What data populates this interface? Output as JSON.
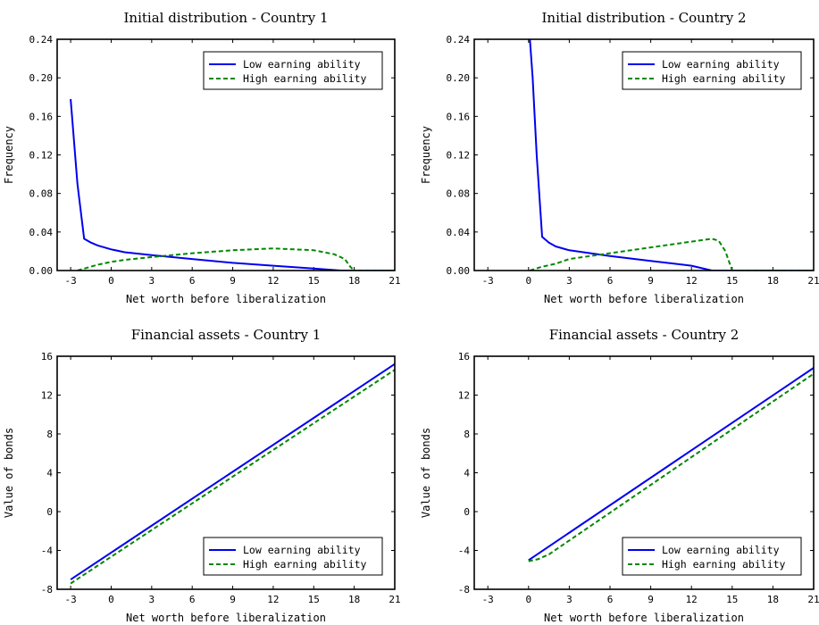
{
  "chart_data": [
    {
      "type": "line",
      "title": "Initial distribution - Country 1",
      "xlabel": "Net worth before liberalization",
      "ylabel": "Frequency",
      "xlim": [
        -4,
        21
      ],
      "ylim": [
        0,
        0.24
      ],
      "xticks": [
        "-3",
        "0",
        "3",
        "6",
        "9",
        "12",
        "15",
        "18",
        "21"
      ],
      "yticks": [
        "0.00",
        "0.04",
        "0.08",
        "0.12",
        "0.16",
        "0.20",
        "0.24"
      ],
      "legend": "top-right",
      "series": [
        {
          "name": "Low earning ability",
          "color": "#0000ee",
          "style": "solid",
          "x": [
            -3,
            -2.5,
            -2,
            -1.5,
            -1,
            0,
            1,
            3,
            6,
            9,
            12,
            15,
            17,
            21
          ],
          "y": [
            0.178,
            0.09,
            0.033,
            0.029,
            0.026,
            0.022,
            0.019,
            0.016,
            0.012,
            0.008,
            0.005,
            0.002,
            0.0,
            0.0
          ]
        },
        {
          "name": "High earning ability",
          "color": "#008800",
          "style": "dashed",
          "x": [
            -2.5,
            -1,
            0,
            1,
            3,
            6,
            9,
            12,
            15,
            16.5,
            17.3,
            17.7,
            18,
            21
          ],
          "y": [
            0.0,
            0.006,
            0.009,
            0.011,
            0.014,
            0.018,
            0.021,
            0.023,
            0.021,
            0.017,
            0.012,
            0.004,
            0.0,
            0.0
          ]
        }
      ]
    },
    {
      "type": "line",
      "title": "Initial distribution - Country 2",
      "xlabel": "Net worth before liberalization",
      "ylabel": "Frequency",
      "xlim": [
        -4,
        21
      ],
      "ylim": [
        0,
        0.24
      ],
      "xticks": [
        "-3",
        "0",
        "3",
        "6",
        "9",
        "12",
        "15",
        "18",
        "21"
      ],
      "yticks": [
        "0.00",
        "0.04",
        "0.08",
        "0.12",
        "0.16",
        "0.20",
        "0.24"
      ],
      "legend": "top-right",
      "series": [
        {
          "name": "Low earning ability",
          "color": "#0000ee",
          "style": "solid",
          "x": [
            0.1,
            0.3,
            0.6,
            1,
            1.5,
            2,
            3,
            6,
            9,
            12,
            13.5,
            21
          ],
          "y": [
            0.24,
            0.2,
            0.12,
            0.035,
            0.029,
            0.025,
            0.021,
            0.015,
            0.01,
            0.005,
            0.0,
            0.0
          ]
        },
        {
          "name": "High earning ability",
          "color": "#008800",
          "style": "dashed",
          "x": [
            0.1,
            1,
            2,
            3,
            6,
            9,
            12,
            13.5,
            14,
            14.5,
            15,
            21
          ],
          "y": [
            0.0,
            0.004,
            0.007,
            0.012,
            0.018,
            0.024,
            0.03,
            0.033,
            0.031,
            0.02,
            0.0,
            0.0
          ]
        }
      ]
    },
    {
      "type": "line",
      "title": "Financial assets - Country 1",
      "xlabel": "Net worth before liberalization",
      "ylabel": "Value of bonds",
      "xlim": [
        -4,
        21
      ],
      "ylim": [
        -8,
        16
      ],
      "xticks": [
        "-3",
        "0",
        "3",
        "6",
        "9",
        "12",
        "15",
        "18",
        "21"
      ],
      "yticks": [
        "-8",
        "-4",
        "0",
        "4",
        "8",
        "12",
        "16"
      ],
      "legend": "bottom-right",
      "series": [
        {
          "name": "Low earning ability",
          "color": "#0000ee",
          "style": "solid",
          "x": [
            -3,
            21
          ],
          "y": [
            -7.0,
            15.2
          ]
        },
        {
          "name": "High earning ability",
          "color": "#008800",
          "style": "dashed",
          "x": [
            -3,
            21
          ],
          "y": [
            -7.4,
            14.6
          ]
        }
      ]
    },
    {
      "type": "line",
      "title": "Financial assets - Country 2",
      "xlabel": "Net worth before liberalization",
      "ylabel": "Value of bonds",
      "xlim": [
        -4,
        21
      ],
      "ylim": [
        -8,
        16
      ],
      "xticks": [
        "-3",
        "0",
        "3",
        "6",
        "9",
        "12",
        "15",
        "18",
        "21"
      ],
      "yticks": [
        "-8",
        "-4",
        "0",
        "4",
        "8",
        "12",
        "16"
      ],
      "legend": "bottom-right",
      "series": [
        {
          "name": "Low earning ability",
          "color": "#0000ee",
          "style": "solid",
          "x": [
            0,
            21
          ],
          "y": [
            -5.0,
            14.8
          ]
        },
        {
          "name": "High earning ability",
          "color": "#008800",
          "style": "dashed",
          "x": [
            0,
            0.7,
            1.5,
            21
          ],
          "y": [
            -5.1,
            -4.9,
            -4.4,
            14.2
          ]
        }
      ]
    }
  ]
}
